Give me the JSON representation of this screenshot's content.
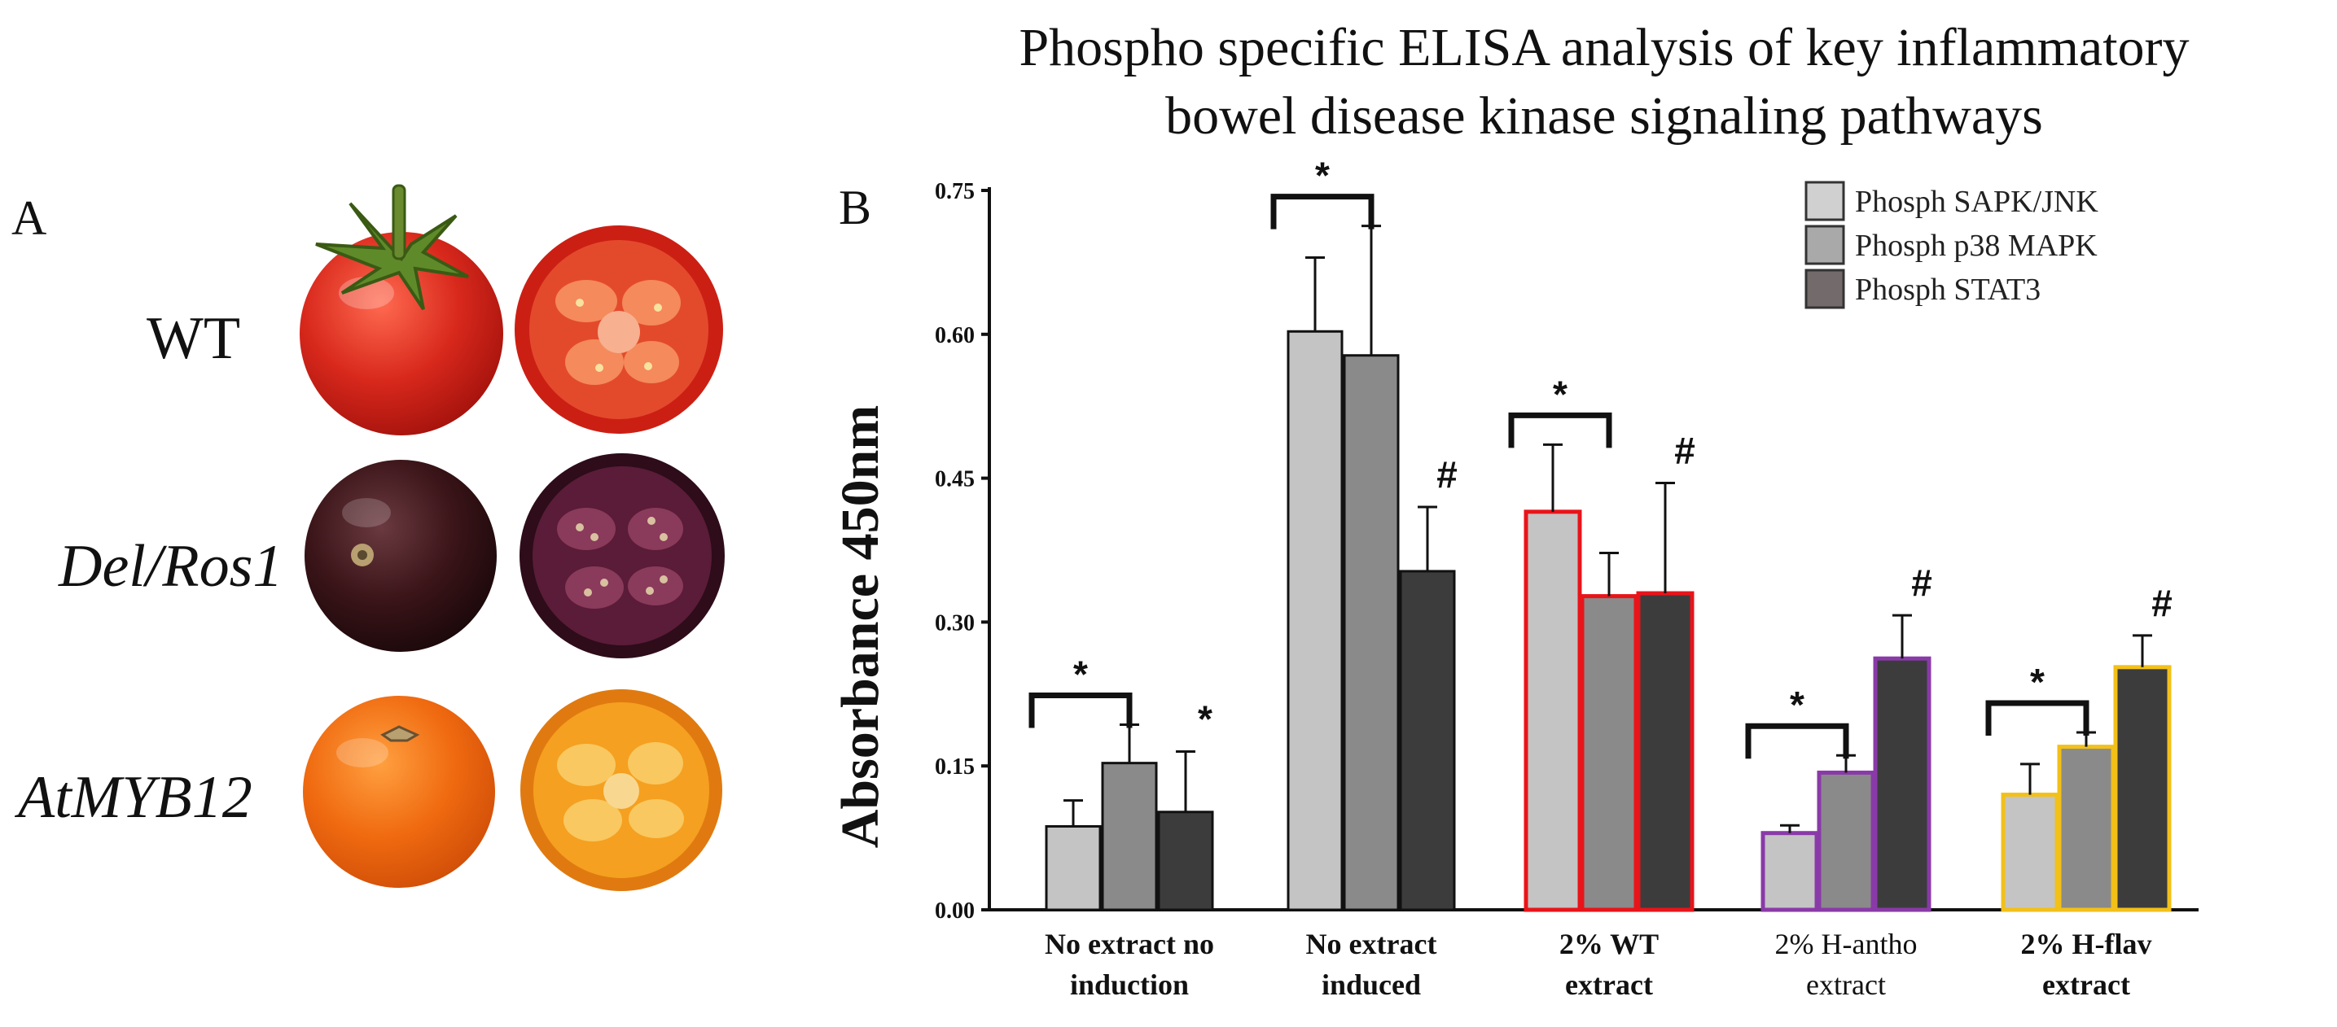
{
  "panel_a": {
    "label": "A",
    "rows": [
      {
        "label": "WT",
        "italic": false,
        "colors": {
          "skin": "#d8281c",
          "skin_dark": "#a3120c",
          "flesh": "#e34a2c",
          "gel": "#f58a5c"
        }
      },
      {
        "label": "Del/Ros1",
        "italic": true,
        "colors": {
          "skin": "#3a1418",
          "skin_dark": "#1a080a",
          "flesh": "#5a1c38",
          "gel": "#8a3a5a"
        }
      },
      {
        "label": "AtMYB12",
        "italic": true,
        "colors": {
          "skin": "#f06a10",
          "skin_dark": "#d04e08",
          "flesh": "#f5a020",
          "gel": "#f9c860"
        }
      }
    ]
  },
  "panel_b": {
    "label": "B"
  },
  "chart_data": {
    "type": "bar",
    "title": [
      "Phospho specific ELISA analysis of key inflammatory",
      "bowel disease kinase signaling pathways"
    ],
    "ylabel": "Absorbance 450nm",
    "xlabel": "",
    "ylim": [
      0,
      0.75
    ],
    "yticks": [
      "0.00",
      "0.15",
      "0.30",
      "0.45",
      "0.60",
      "0.75"
    ],
    "grid": false,
    "legend_position": "top-right",
    "categories": [
      {
        "lines": [
          "No extract no",
          "induction"
        ],
        "bold": true,
        "outline": null
      },
      {
        "lines": [
          "No extract",
          "induced"
        ],
        "bold": true,
        "outline": null
      },
      {
        "lines": [
          "2% WT",
          "extract"
        ],
        "bold": true,
        "outline": "#e8141a"
      },
      {
        "lines": [
          "2% H-antho",
          "extract"
        ],
        "bold": false,
        "outline": "#8a3aa8"
      },
      {
        "lines": [
          "2% H-flav",
          "extract"
        ],
        "bold": true,
        "outline": "#f2c018"
      }
    ],
    "series": [
      {
        "name": "Phosph SAPK/JNK",
        "color": "#c4c4c4",
        "values": [
          0.087,
          0.603,
          0.415,
          0.08,
          0.12
        ],
        "errors": [
          0.027,
          0.077,
          0.07,
          0.008,
          0.032
        ]
      },
      {
        "name": "Phosph p38 MAPK",
        "color": "#8a8a8a",
        "values": [
          0.153,
          0.578,
          0.327,
          0.143,
          0.17
        ],
        "errors": [
          0.04,
          0.135,
          0.045,
          0.018,
          0.015
        ]
      },
      {
        "name": "Phosph STAT3",
        "color": "#3c3c3c",
        "values": [
          0.102,
          0.353,
          0.33,
          0.262,
          0.253
        ],
        "errors": [
          0.063,
          0.067,
          0.115,
          0.045,
          0.033
        ]
      }
    ],
    "legend_colors": [
      "#d0d0d0",
      "#a9a9a9",
      "#736b6b"
    ],
    "significance": [
      {
        "category": 0,
        "bracket_symbol": "*",
        "top_symbol": "*"
      },
      {
        "category": 1,
        "bracket_symbol": "*",
        "top_symbol": "#"
      },
      {
        "category": 2,
        "bracket_symbol": "*",
        "top_symbol": "#"
      },
      {
        "category": 3,
        "bracket_symbol": "*",
        "top_symbol": "#"
      },
      {
        "category": 4,
        "bracket_symbol": "*",
        "top_symbol": "#"
      }
    ]
  }
}
